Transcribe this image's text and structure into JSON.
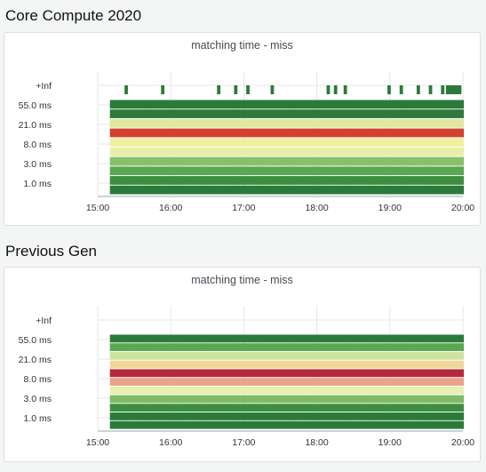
{
  "sections": [
    {
      "title": "Core Compute 2020"
    },
    {
      "title": "Previous Gen"
    }
  ],
  "chart_data": [
    {
      "type": "heatmap",
      "title": "matching time - miss",
      "y_buckets": [
        "1.0 ms",
        "3.0 ms",
        "8.0 ms",
        "21.0 ms",
        "55.0 ms",
        "+Inf"
      ],
      "x_ticks": [
        "15:00",
        "16:00",
        "17:00",
        "18:00",
        "19:00",
        "20:00"
      ],
      "x_range": [
        "15:00",
        "20:00"
      ],
      "start": "15:10",
      "end": "19:58",
      "row_colors": [
        "#2c7a3a",
        "#3c8f3e",
        "#5aa852",
        "#87c16a",
        "#e9efa9",
        "#f2f0a0",
        "#d2402e",
        "#e0e7a0",
        "#2e7a3c",
        "#2c7a3a"
      ],
      "sparse_top": [
        "15:22",
        "15:52",
        "16:38",
        "16:52",
        "17:02",
        "17:22",
        "18:08",
        "18:14",
        "18:22",
        "18:58",
        "19:08",
        "19:22",
        "19:32",
        "19:42",
        "19:46",
        "19:48",
        "19:50",
        "19:52",
        "19:54",
        "19:56"
      ],
      "grid": true
    },
    {
      "type": "heatmap",
      "title": "matching time - miss",
      "y_buckets": [
        "1.0 ms",
        "3.0 ms",
        "8.0 ms",
        "21.0 ms",
        "55.0 ms",
        "+Inf"
      ],
      "x_ticks": [
        "15:00",
        "16:00",
        "17:00",
        "18:00",
        "19:00",
        "20:00"
      ],
      "x_range": [
        "15:00",
        "20:00"
      ],
      "start": "15:10",
      "end": "19:58",
      "row_colors": [
        "#2c7a3a",
        "#2c7a3a",
        "#3c8f3e",
        "#7fbb67",
        "#e8f0b0",
        "#eaa38a",
        "#b8283a",
        "#f0d89a",
        "#cfe3a0",
        "#5aa852",
        "#2c7a3a"
      ],
      "sparse_top": [],
      "grid": true
    }
  ]
}
